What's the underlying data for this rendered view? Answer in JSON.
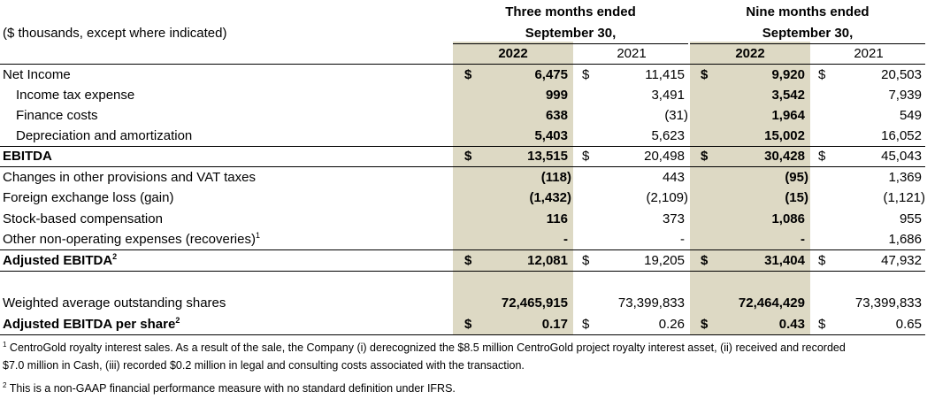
{
  "header": {
    "units": "($ thousands, except where indicated)",
    "three_months_l1": "Three months ended",
    "three_months_l2": "September 30,",
    "nine_months_l1": "Nine months ended",
    "nine_months_l2": "September 30,",
    "y2022_a": "2022",
    "y2021_a": "2021",
    "y2022_b": "2022",
    "y2021_b": "2021"
  },
  "rows": [
    {
      "label": "Net Income",
      "q22": "6,475",
      "q21": "11,415",
      "n22": "9,920",
      "n21": "20,503"
    },
    {
      "label": "Income tax expense",
      "q22": "999",
      "q21": "3,491",
      "n22": "3,542",
      "n21": "7,939"
    },
    {
      "label": "Finance costs",
      "q22": "638",
      "q21": "(31)",
      "n22": "1,964",
      "n21": "549"
    },
    {
      "label": "Depreciation and amortization",
      "q22": "5,403",
      "q21": "5,623",
      "n22": "15,002",
      "n21": "16,052"
    },
    {
      "label": "EBITDA",
      "q22": "13,515",
      "q21": "20,498",
      "n22": "30,428",
      "n21": "45,043"
    },
    {
      "label": "Changes in other provisions and VAT taxes",
      "q22": "(118)",
      "q21": "443",
      "n22": "(95)",
      "n21": "1,369"
    },
    {
      "label": "Foreign exchange loss (gain)",
      "q22": "(1,432)",
      "q21": "(2,109)",
      "n22": "(15)",
      "n21": "(1,121)"
    },
    {
      "label": "Stock-based compensation",
      "q22": "116",
      "q21": "373",
      "n22": "1,086",
      "n21": "955"
    },
    {
      "label": "Other non-operating expenses (recoveries)",
      "sup": "1",
      "q22": "-",
      "q21": "-",
      "n22": "-",
      "n21": "1,686"
    },
    {
      "label": "Adjusted EBITDA",
      "sup": "2",
      "q22": "12,081",
      "q21": "19,205",
      "n22": "31,404",
      "n21": "47,932"
    },
    {
      "label": "Weighted average outstanding shares",
      "q22": "72,465,915",
      "q21": "73,399,833",
      "n22": "72,464,429",
      "n21": "73,399,833"
    },
    {
      "label": "Adjusted EBITDA per share",
      "sup": "2",
      "q22": "0.17",
      "q21": "0.26",
      "n22": "0.43",
      "n21": "0.65"
    }
  ],
  "currency_symbol": "$",
  "footnotes": {
    "f1_mark": "1",
    "f1_line1": " CentroGold royalty interest sales. As a result of the sale, the Company (i) derecognized the $8.5 million CentroGold project royalty interest asset, (ii) received and recorded",
    "f1_line2": "$7.0 million in Cash, (iii) recorded $0.2 million in legal and consulting costs associated with the transaction.",
    "f2_mark": "2",
    "f2_text": " This is a non-GAAP financial performance measure with no standard definition under IFRS."
  },
  "colors": {
    "highlight": "#ddd9c4",
    "text": "#000000"
  }
}
